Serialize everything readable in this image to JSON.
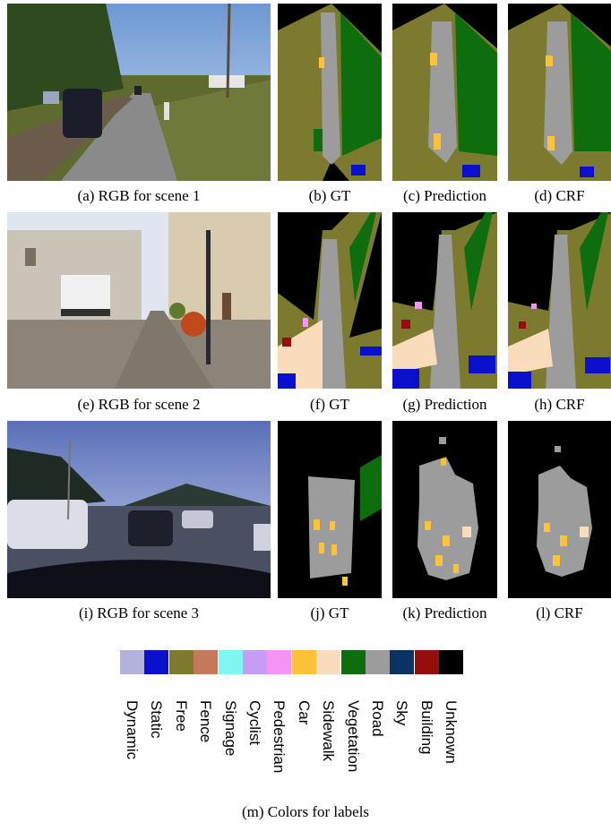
{
  "captions": {
    "a": "(a) RGB for scene 1",
    "b": "(b) GT",
    "c": "(c) Prediction",
    "d": "(d) CRF",
    "e": "(e) RGB for scene 2",
    "f": "(f) GT",
    "g": "(g) Prediction",
    "h": "(h) CRF",
    "i": "(i) RGB for scene 3",
    "j": "(j) GT",
    "k": "(k) Prediction",
    "l": "(l) CRF",
    "m": "(m) Colors for labels"
  },
  "legend": [
    {
      "label": "Dynamic",
      "color": "#b4b2dc"
    },
    {
      "label": "Static",
      "color": "#0a10cc"
    },
    {
      "label": "Free",
      "color": "#7b7a2e"
    },
    {
      "label": "Fence",
      "color": "#c47a5a"
    },
    {
      "label": "Signage",
      "color": "#7ff6f2"
    },
    {
      "label": "Cyclist",
      "color": "#c79cf4"
    },
    {
      "label": "Pedestrian",
      "color": "#f494f4"
    },
    {
      "label": "Car",
      "color": "#fbc23a"
    },
    {
      "label": "Sidewalk",
      "color": "#f9dcbb"
    },
    {
      "label": "Vegetation",
      "color": "#0e6e0e"
    },
    {
      "label": "Road",
      "color": "#9c9c9c"
    },
    {
      "label": "Sky",
      "color": "#0b3264"
    },
    {
      "label": "Building",
      "color": "#950d0d"
    },
    {
      "label": "Unknown",
      "color": "#000000"
    }
  ]
}
